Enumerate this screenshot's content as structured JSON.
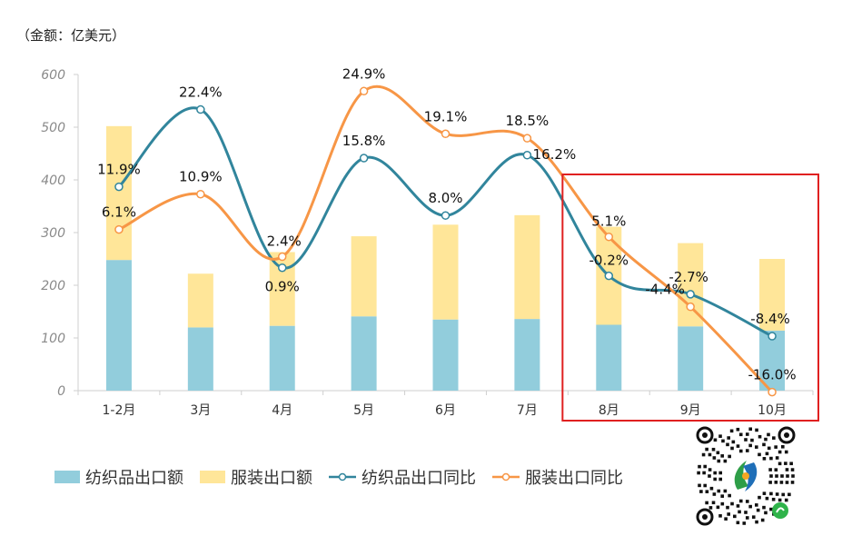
{
  "unit_label": "（金额：亿美元）",
  "chart_data": {
    "type": "bar",
    "stacked": true,
    "categories": [
      "1-2月",
      "3月",
      "4月",
      "5月",
      "6月",
      "7月",
      "8月",
      "9月",
      "10月"
    ],
    "ylim": [
      0,
      600
    ],
    "yticks": [
      "0",
      "100",
      "200",
      "300",
      "400",
      "500",
      "600"
    ],
    "series": [
      {
        "name": "纺织品出口额",
        "kind": "bar",
        "color": "#92cddc",
        "values": [
          248,
          120,
          123,
          141,
          135,
          136,
          125,
          122,
          114
        ]
      },
      {
        "name": "服装出口额",
        "kind": "bar",
        "color": "#ffe699",
        "values": [
          254,
          102,
          140,
          152,
          180,
          197,
          186,
          158,
          136
        ]
      },
      {
        "name": "纺织品出口同比",
        "kind": "line",
        "color": "#31859c",
        "values": [
          11.9,
          22.4,
          0.9,
          15.8,
          8.0,
          16.2,
          -0.2,
          -2.7,
          -8.4
        ],
        "labels": [
          "11.9%",
          "22.4%",
          "0.9%",
          "15.8%",
          "8.0%",
          "16.2%",
          "-0.2%",
          "-2.7%",
          "-8.4%"
        ]
      },
      {
        "name": "服装出口同比",
        "kind": "line",
        "color": "#f79646",
        "values": [
          6.1,
          10.9,
          2.4,
          24.9,
          19.1,
          18.5,
          5.1,
          -4.4,
          -16.0
        ],
        "labels": [
          "6.1%",
          "10.9%",
          "2.4%",
          "24.9%",
          "19.1%",
          "18.5%",
          "5.1%",
          "-4.4%",
          "-16.0%"
        ]
      }
    ],
    "highlight": {
      "from_category": "8月",
      "to_category": "10月",
      "color": "#e02020"
    },
    "legend_position": "bottom-left",
    "grid": false
  },
  "qr": {
    "icon": "mini-program-qr-icon",
    "center_colors": [
      "#2e9e48",
      "#1f6fb8",
      "#f5a623"
    ]
  }
}
